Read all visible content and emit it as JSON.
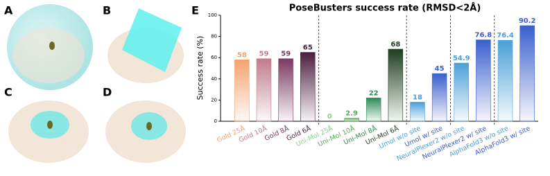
{
  "panels": [
    "A",
    "B",
    "C",
    "D",
    "E"
  ],
  "chart_data": {
    "type": "bar",
    "title": "PoseBusters success rate (RMSD<2Å)",
    "y_label": "Success rate (%)",
    "categories": [
      "Gold 25Å",
      "Gold 10Å",
      "Gold 8Å",
      "Gold 6Å",
      "Uni-Mol 25Å",
      "Uni-Mol 10Å",
      "Uni-Mol 8Å",
      "Uni-Mol 6Å",
      "Umol w/o site",
      "Umol w/ site",
      "NeuralPlexer2 w/o site",
      "NeuralPlexer2 w/ site",
      "AlphaFold3 w/o site",
      "AlphaFold3 w/ site"
    ],
    "values": [
      58,
      59,
      59,
      65,
      0,
      2.9,
      22,
      68,
      18,
      45,
      54.9,
      76.8,
      76.4,
      90.2
    ],
    "colors": [
      "#f4a36c",
      "#c07c8e",
      "#7a3a60",
      "#4b1e3e",
      "#8ccf8c",
      "#5aaa5a",
      "#2e8b57",
      "#1f3d1f",
      "#4a9fd8",
      "#3a5fcd",
      "#4a9fd8",
      "#3a5fcd",
      "#4a9fd8",
      "#3a5fcd"
    ],
    "ylim": [
      0,
      100
    ],
    "yticks": [
      0,
      20,
      40,
      60,
      80,
      100
    ],
    "grid": false
  }
}
